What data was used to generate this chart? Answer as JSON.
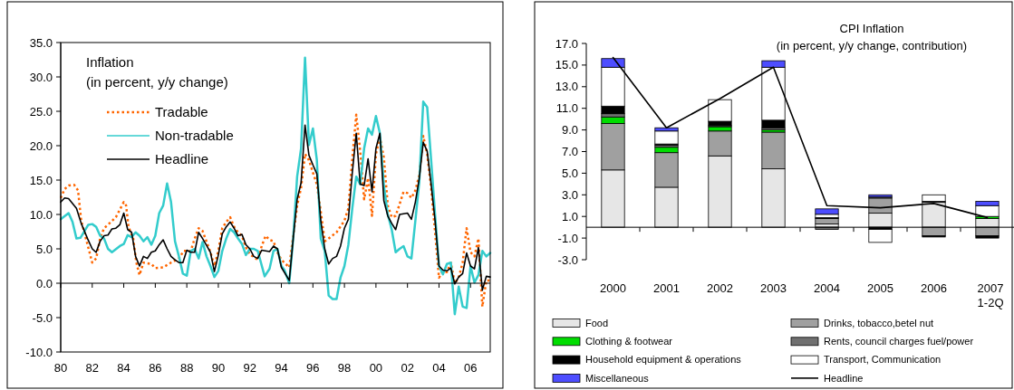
{
  "chart_data": [
    {
      "type": "line",
      "title": "Inflation",
      "subtitle": "(in percent, y/y change)",
      "xlim": [
        1980,
        2007.25
      ],
      "xticks": [
        {
          "value": 1980,
          "label": "80"
        },
        {
          "value": 1982,
          "label": "82"
        },
        {
          "value": 1984,
          "label": "84"
        },
        {
          "value": 1986,
          "label": "86"
        },
        {
          "value": 1988,
          "label": "88"
        },
        {
          "value": 1990,
          "label": "90"
        },
        {
          "value": 1992,
          "label": "92"
        },
        {
          "value": 1994,
          "label": "94"
        },
        {
          "value": 1996,
          "label": "96"
        },
        {
          "value": 1998,
          "label": "98"
        },
        {
          "value": 2000,
          "label": "00"
        },
        {
          "value": 2002,
          "label": "02"
        },
        {
          "value": 2004,
          "label": "04"
        },
        {
          "value": 2006,
          "label": "06"
        }
      ],
      "ylim": [
        -10,
        35
      ],
      "yticks": [
        {
          "value": -10,
          "label": "-10.0"
        },
        {
          "value": -5,
          "label": "-5.0"
        },
        {
          "value": 0,
          "label": "0.0"
        },
        {
          "value": 5,
          "label": "5.0"
        },
        {
          "value": 10,
          "label": "10.0"
        },
        {
          "value": 15,
          "label": "15.0"
        },
        {
          "value": 20,
          "label": "20.0"
        },
        {
          "value": 25,
          "label": "25.0"
        },
        {
          "value": 30,
          "label": "30.0"
        },
        {
          "value": 35,
          "label": "35.0"
        }
      ],
      "legend": "top left",
      "series": [
        {
          "name": "Tradable",
          "color": "#ff6600",
          "line_style": "dotted",
          "x": [
            1980,
            1980.25,
            1980.5,
            1980.85,
            1981.1,
            1981.3,
            1981.6,
            1982,
            1982.25,
            1982.5,
            1982.75,
            1983,
            1983.5,
            1983.75,
            1984,
            1984.15,
            1984.3,
            1984.6,
            1984.8,
            1985,
            1985.25,
            1985.75,
            1986,
            1986.5,
            1987,
            1987.5,
            1987.8,
            1988.25,
            1988.5,
            1988.75,
            1989,
            1989.5,
            1989.75,
            1990,
            1990.25,
            1990.5,
            1990.75,
            1991,
            1991.25,
            1991.5,
            1991.75,
            1992,
            1992.5,
            1992.75,
            1993,
            1993.25,
            1993.5,
            1993.75,
            1994,
            1994.5,
            1994.75,
            1995,
            1995.25,
            1995.5,
            1995.75,
            1996,
            1996.25,
            1996.5,
            1996.75,
            1997,
            1997.5,
            1998,
            1998.25,
            1998.5,
            1998.75,
            1999,
            1999.25,
            1999.5,
            1999.75,
            2000,
            2000.25,
            2000.5,
            2000.75,
            2001,
            2001.25,
            2001.5,
            2001.75,
            2002,
            2002.25,
            2002.5,
            2002.75,
            2003,
            2003.25,
            2003.5,
            2003.75,
            2004,
            2004.25,
            2004.5,
            2004.75,
            2005,
            2005.25,
            2005.5,
            2005.75,
            2006,
            2006.25,
            2006.5,
            2006.75,
            2007,
            2007.25
          ],
          "values": [
            12.4,
            13.7,
            14.2,
            14.3,
            13.5,
            9.1,
            6.5,
            3.0,
            3.6,
            6.5,
            8.0,
            8.5,
            9.6,
            10.7,
            11.8,
            11.3,
            8.2,
            6.5,
            3.0,
            1.2,
            3.0,
            2.8,
            2.2,
            2.3,
            3.0,
            3.6,
            4.7,
            4.7,
            6.5,
            8.0,
            7.6,
            4.5,
            2.5,
            4.7,
            8.0,
            8.9,
            9.6,
            8.2,
            7.4,
            6.9,
            5.2,
            4.2,
            3.4,
            5.4,
            6.9,
            6.3,
            6.1,
            4.5,
            3.4,
            2.3,
            6.9,
            11.3,
            13.9,
            18.8,
            17.9,
            16.1,
            14.4,
            10.4,
            6.1,
            6.5,
            7.4,
            9.1,
            10.9,
            18.1,
            24.5,
            19.2,
            12.2,
            15.3,
            9.8,
            18.8,
            21.2,
            18.3,
            11.3,
            9.6,
            9.8,
            11.5,
            13.3,
            13.1,
            12.4,
            13.5,
            15.7,
            21.4,
            18.8,
            13.9,
            7.4,
            0.8,
            1.7,
            1.6,
            3.0,
            0,
            0.8,
            3.0,
            8.0,
            4.5,
            3.9,
            6.5,
            -3.4,
            0.4,
            0.4
          ]
        },
        {
          "name": "Non-tradable",
          "color": "#33cccc",
          "line_style": "solid",
          "x": [
            1980,
            1980.5,
            1980.75,
            1981,
            1981.25,
            1981.75,
            1982,
            1982.25,
            1982.5,
            1982.75,
            1983,
            1983.25,
            1983.75,
            1984,
            1984.25,
            1984.5,
            1984.75,
            1985,
            1985.25,
            1985.5,
            1985.75,
            1986,
            1986.25,
            1986.5,
            1986.75,
            1987,
            1987.25,
            1987.5,
            1987.75,
            1988,
            1988.25,
            1988.5,
            1988.75,
            1989,
            1989.25,
            1989.5,
            1989.75,
            1990,
            1990.25,
            1990.5,
            1990.75,
            1991,
            1991.25,
            1991.5,
            1991.75,
            1992,
            1992.25,
            1992.5,
            1992.94,
            1993.25,
            1993.5,
            1993.75,
            1994,
            1994.2,
            1994.5,
            1994.75,
            1995,
            1995.25,
            1995.5,
            1995.75,
            1996,
            1996.25,
            1996.5,
            1996.75,
            1997,
            1997.25,
            1997.5,
            1997.75,
            1998,
            1998.25,
            1998.5,
            1998.75,
            1999,
            1999.25,
            1999.5,
            1999.75,
            2000,
            2000.25,
            2000.5,
            2000.75,
            2001,
            2001.25,
            2001.5,
            2001.75,
            2002,
            2002.25,
            2002.5,
            2002.75,
            2003,
            2003.25,
            2003.5,
            2003.75,
            2004,
            2004.25,
            2004.5,
            2004.75,
            2005,
            2005.25,
            2005.5,
            2005.75,
            2006,
            2006.25,
            2006.5,
            2006.75,
            2007,
            2007.25
          ],
          "values": [
            9.3,
            10.2,
            8.9,
            6.5,
            6.6,
            8.5,
            8.6,
            8.2,
            6.9,
            6.5,
            5.0,
            4.5,
            5.4,
            5.7,
            7.0,
            6.7,
            7.4,
            6.9,
            6.1,
            6.7,
            5.6,
            6.9,
            10.2,
            11.3,
            14.5,
            11.8,
            6.1,
            3.9,
            1.4,
            1.1,
            4.7,
            5.0,
            3.6,
            6.0,
            3.9,
            2.5,
            0.9,
            1.8,
            4.7,
            6.5,
            7.9,
            7.4,
            6.5,
            5.7,
            4.1,
            5.0,
            5.0,
            4.7,
            1.0,
            2.1,
            4.7,
            5.0,
            2.5,
            1.9,
            0,
            6.5,
            15.5,
            19.6,
            32.8,
            20.1,
            22.5,
            17.9,
            6.5,
            4.7,
            -1.8,
            -2.3,
            -2.3,
            0.8,
            2.5,
            5.6,
            10.9,
            15.5,
            14.4,
            19.6,
            22.5,
            21.6,
            24.3,
            21.8,
            14.2,
            10.0,
            7.8,
            4.5,
            5.0,
            5.4,
            3.9,
            3.6,
            9.1,
            14.8,
            26.4,
            25.6,
            17.9,
            10.0,
            2.5,
            1.3,
            2.8,
            3.0,
            -4.5,
            -0.5,
            -3.4,
            -3.6,
            2.5,
            0.1,
            1.2,
            4.7,
            3.9,
            4.4
          ]
        },
        {
          "name": "Headline",
          "color": "#000000",
          "line_style": "solid",
          "x": [
            1980,
            1980.25,
            1980.5,
            1981,
            1981.3,
            1981.7,
            1982,
            1982.25,
            1982.5,
            1982.75,
            1983,
            1983.25,
            1983.5,
            1983.75,
            1984,
            1984.25,
            1984.5,
            1984.75,
            1985,
            1985.25,
            1985.5,
            1985.75,
            1986,
            1986.25,
            1986.5,
            1986.75,
            1987,
            1987.25,
            1987.5,
            1987.75,
            1988,
            1988.25,
            1988.5,
            1988.75,
            1989,
            1989.25,
            1989.5,
            1989.75,
            1990,
            1990.25,
            1990.5,
            1990.75,
            1991,
            1991.25,
            1991.5,
            1991.75,
            1992,
            1992.25,
            1992.5,
            1992.75,
            1993.25,
            1993.5,
            1993.75,
            1994,
            1994.5,
            1994.75,
            1995,
            1995.25,
            1995.5,
            1995.75,
            1996,
            1996.25,
            1996.5,
            1996.75,
            1997,
            1997.25,
            1997.5,
            1997.75,
            1998,
            1998.25,
            1998.5,
            1998.75,
            1999,
            1999.25,
            1999.5,
            1999.75,
            2000,
            2000.25,
            2000.5,
            2000.75,
            2001,
            2001.25,
            2001.5,
            2002,
            2002.25,
            2002.5,
            2002.75,
            2003,
            2003.25,
            2003.5,
            2003.75,
            2004,
            2004.25,
            2004.5,
            2004.75,
            2005,
            2005.25,
            2005.5,
            2005.75,
            2006,
            2006.25,
            2006.5,
            2006.75,
            2007,
            2007.25
          ],
          "values": [
            11.8,
            12.4,
            12.3,
            10.9,
            8.7,
            6.5,
            5.0,
            4.5,
            6.1,
            6.9,
            7.0,
            7.9,
            8.0,
            8.5,
            10.2,
            7.8,
            7.4,
            3.9,
            2.5,
            3.9,
            3.6,
            4.5,
            4.7,
            5.6,
            6.3,
            5.0,
            3.9,
            3.4,
            3.0,
            3.0,
            4.8,
            4.5,
            4.5,
            7.4,
            6.5,
            5.5,
            4.5,
            1.7,
            4.1,
            7.2,
            8.2,
            8.9,
            8.0,
            6.9,
            7.1,
            5.6,
            5.0,
            3.9,
            3.6,
            4.8,
            4.6,
            5.4,
            5.0,
            2.3,
            0.4,
            6.5,
            12.2,
            14.6,
            23.0,
            18.6,
            17.2,
            15.9,
            9.1,
            5.0,
            2.8,
            3.6,
            3.9,
            5.4,
            8.0,
            9.3,
            16.1,
            21.8,
            14.4,
            14.2,
            18.1,
            13.3,
            19.6,
            21.8,
            12.0,
            9.8,
            8.7,
            7.8,
            10.0,
            10.2,
            9.3,
            11.8,
            15.3,
            20.5,
            19.2,
            14.4,
            9.1,
            2.5,
            1.9,
            1.8,
            2.2,
            -0.1,
            0.9,
            1.4,
            4.4,
            2.5,
            2.1,
            5.2,
            -1.0,
            1.0,
            0.9
          ]
        }
      ]
    },
    {
      "type": "bar",
      "stacked": true,
      "title": "CPI Inflation",
      "subtitle": "(in percent, y/y change, contribution)",
      "categories": [
        "2000",
        "2001",
        "2002",
        "2003",
        "2004",
        "2005",
        "2006",
        "2007\n1-2Q"
      ],
      "ylim": [
        -3,
        17
      ],
      "yticks": [
        {
          "value": -3,
          "label": "-3.0"
        },
        {
          "value": -1,
          "label": "-1.0"
        },
        {
          "value": 1,
          "label": "1.0"
        },
        {
          "value": 3,
          "label": "3.0"
        },
        {
          "value": 5,
          "label": "5.0"
        },
        {
          "value": 7,
          "label": "7.0"
        },
        {
          "value": 9,
          "label": "9.0"
        },
        {
          "value": 11,
          "label": "11.0"
        },
        {
          "value": 13,
          "label": "13.0"
        },
        {
          "value": 15,
          "label": "15.0"
        },
        {
          "value": 17,
          "label": "17.0"
        }
      ],
      "legend": "bottom",
      "series": [
        {
          "name": "Food",
          "color": "#e6e6e6",
          "values": [
            5.3,
            3.7,
            6.6,
            5.4,
            0.3,
            1.3,
            2.3,
            0.8
          ]
        },
        {
          "name": "Drinks, tobacco,betel nut",
          "color": "#a0a0a0",
          "values": [
            4.3,
            3.2,
            2.3,
            3.4,
            0.5,
            1.4,
            -0.8,
            -0.8
          ]
        },
        {
          "name": "Clothing & footwear",
          "color": "#00dd00",
          "values": [
            0.6,
            0.5,
            0.4,
            0.2,
            null,
            null,
            null,
            0.2
          ]
        },
        {
          "name": "Rents, council charges fuel/power",
          "color": "#707070",
          "values": [
            0.3,
            0.2,
            0.1,
            0.2,
            -0.2,
            0.1,
            0.1,
            null
          ]
        },
        {
          "name": "Household equipment & operations",
          "color": "#000000",
          "values": [
            0.7,
            0.1,
            0.4,
            0.7,
            0.1,
            -0.2,
            -0.1,
            -0.2
          ]
        },
        {
          "name": "Transport, Communication",
          "color": "#ffffff",
          "values": [
            3.6,
            1.2,
            2.0,
            4.9,
            0.3,
            -1.2,
            0.6,
            1.0
          ]
        },
        {
          "name": "Miscellaneous",
          "color": "#4d4dff",
          "values": [
            0.8,
            0.3,
            null,
            0.6,
            0.5,
            0.2,
            null,
            0.4
          ]
        },
        {
          "name": "Headline",
          "type": "line",
          "color": "#000000",
          "values": [
            15.7,
            9.2,
            11.9,
            14.8,
            2.0,
            1.8,
            2.2,
            0.9
          ]
        }
      ]
    }
  ]
}
